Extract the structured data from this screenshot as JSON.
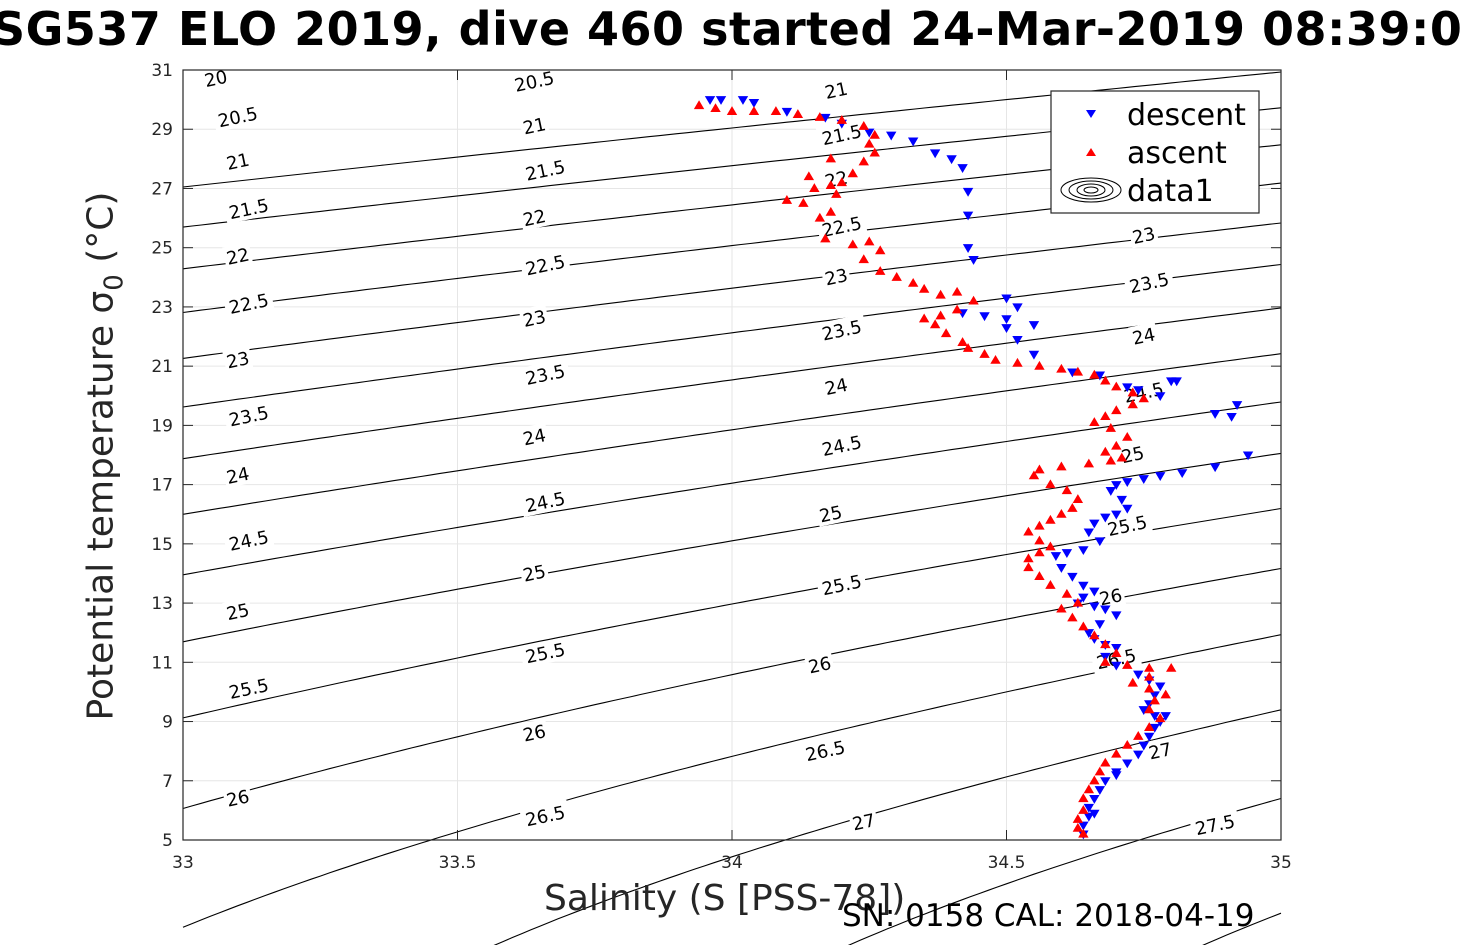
{
  "title": "SG537 ELO 2019, dive 460 started 24-Mar-2019 08:39:0",
  "xlabel": "Salinity (S [PSS-78])",
  "ylabel_main": "Potential temperature ",
  "ylabel_sigma": "σ",
  "ylabel_sub": "0",
  "ylabel_unit": " (°C)",
  "footer": "SN: 0158  CAL: 2018-04-19",
  "chart_data": {
    "type": "scatter",
    "xlim": [
      33,
      35
    ],
    "ylim": [
      5,
      31
    ],
    "xticks": [
      "33",
      "33.5",
      "34",
      "34.5",
      "35"
    ],
    "yticks": [
      "5",
      "7",
      "9",
      "11",
      "13",
      "15",
      "17",
      "19",
      "21",
      "23",
      "25",
      "27",
      "29",
      "31"
    ],
    "grid": true,
    "legend_position": "top-right",
    "legend": [
      {
        "label": "descent",
        "marker": "triangle-down",
        "color": "#0000ff"
      },
      {
        "label": "ascent",
        "marker": "triangle-up",
        "color": "#ff0000"
      },
      {
        "label": "data1",
        "marker": "contour",
        "color": "#000000"
      }
    ],
    "density_contours": {
      "levels": [
        20,
        20.5,
        21,
        21.5,
        22,
        22.5,
        23,
        23.5,
        24,
        24.5,
        25,
        25.5,
        26,
        26.5,
        27,
        27.5
      ],
      "labels": [
        {
          "text": "20",
          "x": 33.06,
          "y": 30.7
        },
        {
          "text": "20.5",
          "x": 33.1,
          "y": 29.4
        },
        {
          "text": "21",
          "x": 33.1,
          "y": 27.9
        },
        {
          "text": "21.5",
          "x": 33.12,
          "y": 26.3
        },
        {
          "text": "22",
          "x": 33.1,
          "y": 24.7
        },
        {
          "text": "22.5",
          "x": 33.12,
          "y": 23.1
        },
        {
          "text": "23",
          "x": 33.1,
          "y": 21.2
        },
        {
          "text": "23.5",
          "x": 33.12,
          "y": 19.3
        },
        {
          "text": "24",
          "x": 33.1,
          "y": 17.3
        },
        {
          "text": "24.5",
          "x": 33.12,
          "y": 15.1
        },
        {
          "text": "25",
          "x": 33.1,
          "y": 12.7
        },
        {
          "text": "25.5",
          "x": 33.12,
          "y": 10.1
        },
        {
          "text": "26",
          "x": 33.1,
          "y": 6.4
        },
        {
          "text": "20.5",
          "x": 33.64,
          "y": 30.6
        },
        {
          "text": "21",
          "x": 33.64,
          "y": 29.1
        },
        {
          "text": "21.5",
          "x": 33.66,
          "y": 27.6
        },
        {
          "text": "22",
          "x": 33.64,
          "y": 26.0
        },
        {
          "text": "22.5",
          "x": 33.66,
          "y": 24.4
        },
        {
          "text": "23",
          "x": 33.64,
          "y": 22.6
        },
        {
          "text": "23.5",
          "x": 33.66,
          "y": 20.7
        },
        {
          "text": "24",
          "x": 33.64,
          "y": 18.6
        },
        {
          "text": "24.5",
          "x": 33.66,
          "y": 16.4
        },
        {
          "text": "25",
          "x": 33.64,
          "y": 14.0
        },
        {
          "text": "25.5",
          "x": 33.66,
          "y": 11.3
        },
        {
          "text": "26",
          "x": 33.64,
          "y": 8.6
        },
        {
          "text": "26.5",
          "x": 33.66,
          "y": 5.8
        },
        {
          "text": "21",
          "x": 34.19,
          "y": 30.3
        },
        {
          "text": "21.5",
          "x": 34.2,
          "y": 28.8
        },
        {
          "text": "22",
          "x": 34.19,
          "y": 27.3
        },
        {
          "text": "22.5",
          "x": 34.2,
          "y": 25.7
        },
        {
          "text": "23",
          "x": 34.19,
          "y": 24.0
        },
        {
          "text": "23.5",
          "x": 34.2,
          "y": 22.2
        },
        {
          "text": "24",
          "x": 34.19,
          "y": 20.3
        },
        {
          "text": "24.5",
          "x": 34.2,
          "y": 18.3
        },
        {
          "text": "25",
          "x": 34.18,
          "y": 16.0
        },
        {
          "text": "25.5",
          "x": 34.2,
          "y": 13.6
        },
        {
          "text": "26",
          "x": 34.16,
          "y": 10.9
        },
        {
          "text": "26.5",
          "x": 34.17,
          "y": 8.0
        },
        {
          "text": "27",
          "x": 34.24,
          "y": 5.6
        },
        {
          "text": "23",
          "x": 34.75,
          "y": 25.4
        },
        {
          "text": "23.5",
          "x": 34.76,
          "y": 23.8
        },
        {
          "text": "24",
          "x": 34.75,
          "y": 22.0
        },
        {
          "text": "24.5",
          "x": 34.75,
          "y": 20.1
        },
        {
          "text": "25",
          "x": 34.73,
          "y": 18.0
        },
        {
          "text": "25.5",
          "x": 34.72,
          "y": 15.6
        },
        {
          "text": "26",
          "x": 34.69,
          "y": 13.2
        },
        {
          "text": "26.5",
          "x": 34.7,
          "y": 11.1
        },
        {
          "text": "27",
          "x": 34.78,
          "y": 8.0
        },
        {
          "text": "27.5",
          "x": 34.88,
          "y": 5.5
        }
      ]
    },
    "series": [
      {
        "name": "descent",
        "color": "#0000ff",
        "marker": "triangle-down",
        "points": [
          [
            33.96,
            30.0
          ],
          [
            33.98,
            30.0
          ],
          [
            34.02,
            30.0
          ],
          [
            34.04,
            29.9
          ],
          [
            34.1,
            29.6
          ],
          [
            34.17,
            29.4
          ],
          [
            34.2,
            29.2
          ],
          [
            34.25,
            28.9
          ],
          [
            34.29,
            28.8
          ],
          [
            34.33,
            28.6
          ],
          [
            34.37,
            28.2
          ],
          [
            34.4,
            28.0
          ],
          [
            34.42,
            27.7
          ],
          [
            34.43,
            26.9
          ],
          [
            34.43,
            26.1
          ],
          [
            34.43,
            25.0
          ],
          [
            34.44,
            24.6
          ],
          [
            34.42,
            22.8
          ],
          [
            34.46,
            22.7
          ],
          [
            34.5,
            22.6
          ],
          [
            34.5,
            23.3
          ],
          [
            34.52,
            23.0
          ],
          [
            34.5,
            22.3
          ],
          [
            34.55,
            22.4
          ],
          [
            34.52,
            21.9
          ],
          [
            34.55,
            21.4
          ],
          [
            34.62,
            20.8
          ],
          [
            34.67,
            20.7
          ],
          [
            34.72,
            20.3
          ],
          [
            34.74,
            20.2
          ],
          [
            34.78,
            20.0
          ],
          [
            34.8,
            20.5
          ],
          [
            34.81,
            20.5
          ],
          [
            34.88,
            19.4
          ],
          [
            34.91,
            19.3
          ],
          [
            34.92,
            19.7
          ],
          [
            34.94,
            18.0
          ],
          [
            34.88,
            17.6
          ],
          [
            34.82,
            17.4
          ],
          [
            34.78,
            17.3
          ],
          [
            34.75,
            17.2
          ],
          [
            34.72,
            17.1
          ],
          [
            34.7,
            17.0
          ],
          [
            34.69,
            16.8
          ],
          [
            34.71,
            16.5
          ],
          [
            34.72,
            16.2
          ],
          [
            34.7,
            16.0
          ],
          [
            34.68,
            15.9
          ],
          [
            34.66,
            15.7
          ],
          [
            34.65,
            15.4
          ],
          [
            34.67,
            15.1
          ],
          [
            34.64,
            14.8
          ],
          [
            34.61,
            14.7
          ],
          [
            34.59,
            14.6
          ],
          [
            34.6,
            14.2
          ],
          [
            34.62,
            13.9
          ],
          [
            34.64,
            13.6
          ],
          [
            34.66,
            13.4
          ],
          [
            34.64,
            13.2
          ],
          [
            34.63,
            13.0
          ],
          [
            34.66,
            12.9
          ],
          [
            34.68,
            12.8
          ],
          [
            34.7,
            12.6
          ],
          [
            34.67,
            12.3
          ],
          [
            34.65,
            12.0
          ],
          [
            34.66,
            11.8
          ],
          [
            34.68,
            11.6
          ],
          [
            34.7,
            11.5
          ],
          [
            34.68,
            11.2
          ],
          [
            34.7,
            10.9
          ],
          [
            34.74,
            10.6
          ],
          [
            34.76,
            10.4
          ],
          [
            34.78,
            10.2
          ],
          [
            34.77,
            9.9
          ],
          [
            34.76,
            9.6
          ],
          [
            34.75,
            9.4
          ],
          [
            34.77,
            9.2
          ],
          [
            34.79,
            9.2
          ],
          [
            34.78,
            9.0
          ],
          [
            34.77,
            8.8
          ],
          [
            34.76,
            8.5
          ],
          [
            34.75,
            8.2
          ],
          [
            34.74,
            7.9
          ],
          [
            34.72,
            7.6
          ],
          [
            34.7,
            7.3
          ],
          [
            34.68,
            7.0
          ],
          [
            34.67,
            6.7
          ],
          [
            34.66,
            6.4
          ],
          [
            34.65,
            6.1
          ],
          [
            34.65,
            5.8
          ],
          [
            34.64,
            5.5
          ],
          [
            34.64,
            5.2
          ],
          [
            34.66,
            5.9
          ],
          [
            34.7,
            7.2
          ]
        ]
      },
      {
        "name": "ascent",
        "color": "#ff0000",
        "marker": "triangle-up",
        "points": [
          [
            33.94,
            29.8
          ],
          [
            33.97,
            29.7
          ],
          [
            34.0,
            29.6
          ],
          [
            34.04,
            29.6
          ],
          [
            34.08,
            29.6
          ],
          [
            34.12,
            29.5
          ],
          [
            34.16,
            29.4
          ],
          [
            34.2,
            29.3
          ],
          [
            34.24,
            29.1
          ],
          [
            34.26,
            28.8
          ],
          [
            34.25,
            28.5
          ],
          [
            34.26,
            28.2
          ],
          [
            34.24,
            27.9
          ],
          [
            34.22,
            27.5
          ],
          [
            34.2,
            27.2
          ],
          [
            34.18,
            27.1
          ],
          [
            34.15,
            27.0
          ],
          [
            34.14,
            27.4
          ],
          [
            34.18,
            28.0
          ],
          [
            34.19,
            26.8
          ],
          [
            34.13,
            26.5
          ],
          [
            34.1,
            26.6
          ],
          [
            34.18,
            26.2
          ],
          [
            34.16,
            26.0
          ],
          [
            34.17,
            25.3
          ],
          [
            34.22,
            25.1
          ],
          [
            34.25,
            25.2
          ],
          [
            34.27,
            24.9
          ],
          [
            34.24,
            24.6
          ],
          [
            34.27,
            24.2
          ],
          [
            34.3,
            24.0
          ],
          [
            34.33,
            23.8
          ],
          [
            34.35,
            23.6
          ],
          [
            34.38,
            23.4
          ],
          [
            34.41,
            23.5
          ],
          [
            34.44,
            23.2
          ],
          [
            34.41,
            22.9
          ],
          [
            34.38,
            22.7
          ],
          [
            34.35,
            22.6
          ],
          [
            34.37,
            22.4
          ],
          [
            34.39,
            22.1
          ],
          [
            34.42,
            21.8
          ],
          [
            34.43,
            21.6
          ],
          [
            34.46,
            21.4
          ],
          [
            34.48,
            21.2
          ],
          [
            34.52,
            21.1
          ],
          [
            34.56,
            21.0
          ],
          [
            34.6,
            20.9
          ],
          [
            34.63,
            20.8
          ],
          [
            34.66,
            20.7
          ],
          [
            34.68,
            20.5
          ],
          [
            34.7,
            20.3
          ],
          [
            34.73,
            20.1
          ],
          [
            34.75,
            19.9
          ],
          [
            34.73,
            19.7
          ],
          [
            34.7,
            19.5
          ],
          [
            34.68,
            19.3
          ],
          [
            34.66,
            19.1
          ],
          [
            34.69,
            18.9
          ],
          [
            34.72,
            18.6
          ],
          [
            34.7,
            18.3
          ],
          [
            34.68,
            18.1
          ],
          [
            34.71,
            17.9
          ],
          [
            34.69,
            17.8
          ],
          [
            34.65,
            17.7
          ],
          [
            34.6,
            17.6
          ],
          [
            34.56,
            17.5
          ],
          [
            34.55,
            17.3
          ],
          [
            34.58,
            17.0
          ],
          [
            34.61,
            16.8
          ],
          [
            34.63,
            16.5
          ],
          [
            34.62,
            16.2
          ],
          [
            34.6,
            16.0
          ],
          [
            34.58,
            15.8
          ],
          [
            34.56,
            15.6
          ],
          [
            34.54,
            15.4
          ],
          [
            34.56,
            15.1
          ],
          [
            34.58,
            14.9
          ],
          [
            34.56,
            14.7
          ],
          [
            34.54,
            14.5
          ],
          [
            34.54,
            14.2
          ],
          [
            34.56,
            13.9
          ],
          [
            34.58,
            13.6
          ],
          [
            34.61,
            13.3
          ],
          [
            34.63,
            13.0
          ],
          [
            34.6,
            12.8
          ],
          [
            34.62,
            12.5
          ],
          [
            34.64,
            12.2
          ],
          [
            34.66,
            11.9
          ],
          [
            34.68,
            11.6
          ],
          [
            34.7,
            11.3
          ],
          [
            34.68,
            11.0
          ],
          [
            34.72,
            10.9
          ],
          [
            34.76,
            10.8
          ],
          [
            34.8,
            10.8
          ],
          [
            34.76,
            10.5
          ],
          [
            34.73,
            10.3
          ],
          [
            34.76,
            10.1
          ],
          [
            34.79,
            9.9
          ],
          [
            34.77,
            9.7
          ],
          [
            34.76,
            9.4
          ],
          [
            34.78,
            9.1
          ],
          [
            34.76,
            8.8
          ],
          [
            34.74,
            8.5
          ],
          [
            34.72,
            8.2
          ],
          [
            34.7,
            7.9
          ],
          [
            34.68,
            7.6
          ],
          [
            34.67,
            7.3
          ],
          [
            34.66,
            7.0
          ],
          [
            34.65,
            6.7
          ],
          [
            34.64,
            6.4
          ],
          [
            34.64,
            6.0
          ],
          [
            34.63,
            5.7
          ],
          [
            34.63,
            5.4
          ],
          [
            34.64,
            5.2
          ]
        ]
      }
    ]
  }
}
